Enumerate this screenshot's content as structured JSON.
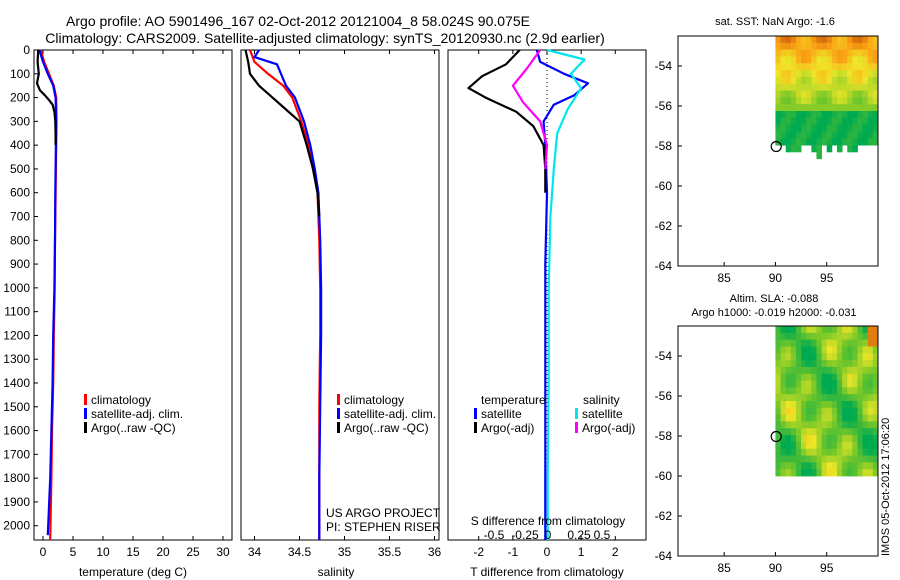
{
  "header": {
    "title_line1": "Argo profile: AO 5901496_167 02-Oct-2012 20121004_8 58.024S 90.075E",
    "title_line2": "Climatology: CARS2009. Satellite-adjusted climatology: synTS_20120930.nc (2.9d earlier)"
  },
  "colors": {
    "climatology": "#ff0000",
    "satellite_adj": "#0000ff",
    "argo": "#000000",
    "salinity_satellite": "#00e5ee",
    "salinity_argo": "#ff00ff"
  },
  "chart_data": [
    {
      "type": "line",
      "id": "temperature",
      "xlabel": "temperature (deg C)",
      "xticks": [
        0,
        5,
        10,
        15,
        20,
        25,
        30
      ],
      "xlim": [
        -1.5,
        31.5
      ],
      "ylim": [
        0,
        2060
      ],
      "yreverse": true,
      "yticks": [
        0,
        100,
        200,
        300,
        400,
        500,
        600,
        700,
        800,
        900,
        1000,
        1100,
        1200,
        1300,
        1400,
        1500,
        1600,
        1700,
        1800,
        1900,
        2000
      ],
      "legend": [
        "climatology",
        "satellite-adj. clim.",
        "Argo(..raw -QC)"
      ],
      "series": [
        {
          "name": "climatology",
          "color": "#ff0000",
          "x": [
            -0.4,
            0.2,
            1.0,
            1.8,
            2.2,
            2.25,
            2.2,
            2.15,
            2.1,
            2.0,
            1.95,
            1.8,
            1.7,
            1.5,
            1.4,
            1.2
          ],
          "y": [
            0,
            50,
            100,
            150,
            200,
            300,
            400,
            500,
            600,
            800,
            1000,
            1200,
            1400,
            1600,
            1800,
            2060
          ]
        },
        {
          "name": "satellite-adj. clim.",
          "color": "#0000ff",
          "x": [
            -0.6,
            0.0,
            0.8,
            1.7,
            2.1,
            2.2,
            2.15,
            2.1,
            2.05,
            2.0,
            1.9,
            1.7,
            1.6,
            1.4,
            1.2,
            0.8
          ],
          "y": [
            0,
            50,
            100,
            150,
            200,
            300,
            400,
            500,
            600,
            800,
            1000,
            1200,
            1400,
            1600,
            1800,
            2040
          ]
        },
        {
          "name": "Argo(..raw -QC)",
          "color": "#000000",
          "x": [
            -0.8,
            -0.9,
            -0.7,
            -1.0,
            -0.5,
            0.3,
            1.0,
            1.6,
            1.9,
            2.05,
            2.1,
            2.1
          ],
          "y": [
            0,
            50,
            100,
            140,
            170,
            190,
            210,
            230,
            260,
            300,
            360,
            400
          ]
        }
      ]
    },
    {
      "type": "line",
      "id": "salinity",
      "xlabel": "salinity",
      "xticks": [
        34,
        34.5,
        35,
        35.5,
        36
      ],
      "xlim": [
        33.85,
        36.05
      ],
      "ylim": [
        0,
        2060
      ],
      "yreverse": true,
      "legend": [
        "climatology",
        "satellite-adj. clim.",
        "Argo(..raw -QC)"
      ],
      "annotation": [
        "US ARGO PROJECT",
        "PI: STEPHEN RISER"
      ],
      "series": [
        {
          "name": "climatology",
          "color": "#ff0000",
          "x": [
            33.95,
            34.0,
            34.15,
            34.32,
            34.42,
            34.52,
            34.6,
            34.65,
            34.7,
            34.72,
            34.73,
            34.73,
            34.72,
            34.72,
            34.72
          ],
          "y": [
            0,
            50,
            100,
            150,
            200,
            300,
            400,
            500,
            600,
            800,
            1000,
            1200,
            1500,
            1800,
            2060
          ]
        },
        {
          "name": "satellite-adj. clim.",
          "color": "#0000ff",
          "x": [
            34.05,
            34.0,
            34.25,
            34.35,
            34.45,
            34.55,
            34.62,
            34.67,
            34.71,
            34.73,
            34.74,
            34.74,
            34.73,
            34.72,
            34.72
          ],
          "y": [
            0,
            30,
            60,
            150,
            200,
            300,
            400,
            500,
            600,
            800,
            1000,
            1200,
            1500,
            1800,
            2060
          ]
        },
        {
          "name": "Argo(..raw -QC)",
          "color": "#000000",
          "x": [
            33.9,
            33.93,
            33.95,
            34.05,
            34.2,
            34.35,
            34.5,
            34.58,
            34.65,
            34.7,
            34.72
          ],
          "y": [
            0,
            50,
            100,
            150,
            200,
            250,
            300,
            400,
            500,
            600,
            700
          ]
        }
      ]
    },
    {
      "type": "line",
      "id": "difference",
      "xlabel": "T difference from climatology",
      "xticks": [
        -2,
        -1,
        0,
        1,
        2
      ],
      "xlim": [
        -2.9,
        2.9
      ],
      "top_label": "S difference from climatology",
      "top_ticks": [
        "-0.5",
        "-0.25",
        "0",
        "0.25",
        "0.5"
      ],
      "ylim": [
        0,
        2060
      ],
      "yreverse": true,
      "legend_left_title": "temperature",
      "legend_right_title": "salinity",
      "legend_left": [
        "satellite",
        "Argo(-adj)"
      ],
      "legend_right": [
        "satellite",
        "Argo(-adj)"
      ],
      "series": [
        {
          "name": "T satellite",
          "color": "#0000ff",
          "x": [
            -0.3,
            -0.2,
            0.5,
            1.2,
            0.8,
            0.2,
            -0.1,
            -0.05,
            0.0,
            -0.05,
            -0.05,
            -0.05,
            -0.05
          ],
          "y": [
            0,
            50,
            100,
            140,
            190,
            230,
            300,
            400,
            600,
            900,
            1200,
            1600,
            2060
          ]
        },
        {
          "name": "T Argo(-adj)",
          "color": "#000000",
          "x": [
            -0.8,
            -1.2,
            -1.9,
            -2.3,
            -1.8,
            -0.9,
            -0.4,
            -0.1,
            -0.05,
            -0.05
          ],
          "y": [
            0,
            60,
            110,
            160,
            200,
            260,
            320,
            400,
            500,
            600
          ]
        },
        {
          "name": "S satellite",
          "color": "#00e5ee",
          "x": [
            0.0,
            1.1,
            0.7,
            1.0,
            0.6,
            0.3,
            0.2,
            0.1,
            0.05,
            0.05,
            0.02,
            0.02
          ],
          "y": [
            0,
            40,
            100,
            160,
            250,
            350,
            500,
            700,
            1000,
            1400,
            1800,
            2060
          ]
        },
        {
          "name": "S Argo(-adj)",
          "color": "#ff00ff",
          "x": [
            -0.2,
            -0.6,
            -1.0,
            -0.7,
            -0.2,
            0.0,
            -0.05
          ],
          "y": [
            0,
            80,
            150,
            220,
            300,
            400,
            500
          ]
        }
      ]
    },
    {
      "type": "heatmap",
      "id": "sst_map",
      "title": "sat. SST: NaN Argo: -1.6",
      "xticks": [
        85,
        90,
        95
      ],
      "yticks": [
        -54,
        -56,
        -58,
        -60,
        -62,
        -64
      ],
      "xlim": [
        80.5,
        100
      ],
      "ylim": [
        -64,
        -52.5
      ],
      "marker": {
        "lon": 90.075,
        "lat": -58.024
      }
    },
    {
      "type": "heatmap",
      "id": "sla_map",
      "title": "Altim. SLA: -0.088",
      "subtitle": "Argo h1000: -0.019 h2000: -0.031",
      "xticks": [
        85,
        90,
        95
      ],
      "yticks": [
        -54,
        -56,
        -58,
        -60,
        -62,
        -64
      ],
      "xlim": [
        80.5,
        100
      ],
      "ylim": [
        -64,
        -52.5
      ],
      "marker": {
        "lon": 90.075,
        "lat": -58.024
      }
    }
  ],
  "footer": {
    "stamp": "IMOS 05-Oct-2012 17:06:20"
  }
}
